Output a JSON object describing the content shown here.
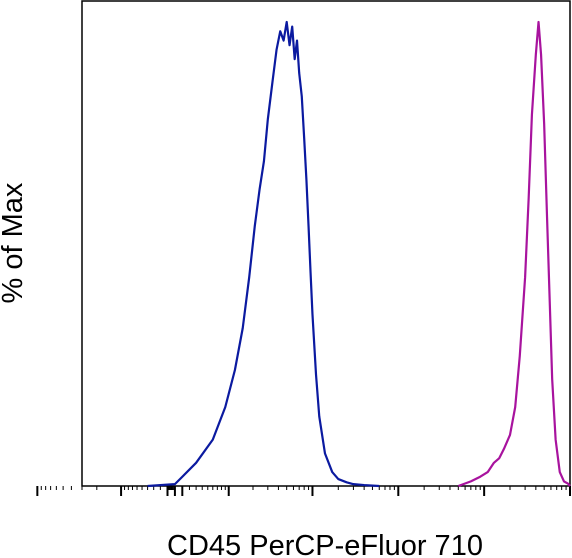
{
  "chart_data": {
    "type": "line",
    "title": "",
    "xlabel": "CD45 PerCP-eFluor 710",
    "ylabel": "% of Max",
    "x_scale": "log",
    "xlim": [
      -300,
      1000000
    ],
    "ylim": [
      0,
      100
    ],
    "grid": false,
    "legend": "none",
    "series": [
      {
        "color": "#0b1aa0",
        "x": [
          -40,
          0,
          10,
          30,
          60,
          90,
          120,
          150,
          180,
          210,
          240,
          270,
          300,
          340,
          380,
          420,
          460,
          500,
          540,
          580,
          620,
          660,
          700,
          750,
          800,
          850,
          900,
          950,
          1000,
          1100,
          1200,
          1400,
          1700,
          2000,
          2500,
          3000,
          4000,
          6000
        ],
        "y": [
          0,
          0.4,
          2,
          5,
          10,
          17,
          25,
          34,
          45,
          56,
          64,
          70,
          79,
          87,
          94,
          98,
          96,
          100,
          95,
          99,
          92,
          96,
          89,
          84,
          75,
          66,
          56,
          46,
          37,
          24,
          15,
          7,
          3,
          1.5,
          0.8,
          0.4,
          0.2,
          0
        ]
      },
      {
        "color": "#a8139e",
        "x": [
          50000,
          70000,
          90000,
          110000,
          130000,
          150000,
          170000,
          200000,
          230000,
          260000,
          300000,
          330000,
          360000,
          400000,
          430000,
          460000,
          500000,
          540000,
          580000,
          620000,
          680000,
          760000,
          850000,
          950000,
          1000000
        ],
        "y": [
          0,
          1,
          2,
          3,
          5,
          6,
          8,
          11,
          17,
          28,
          45,
          62,
          80,
          93,
          100,
          93,
          78,
          58,
          40,
          23,
          10,
          3,
          1,
          0.5,
          0
        ]
      }
    ]
  }
}
